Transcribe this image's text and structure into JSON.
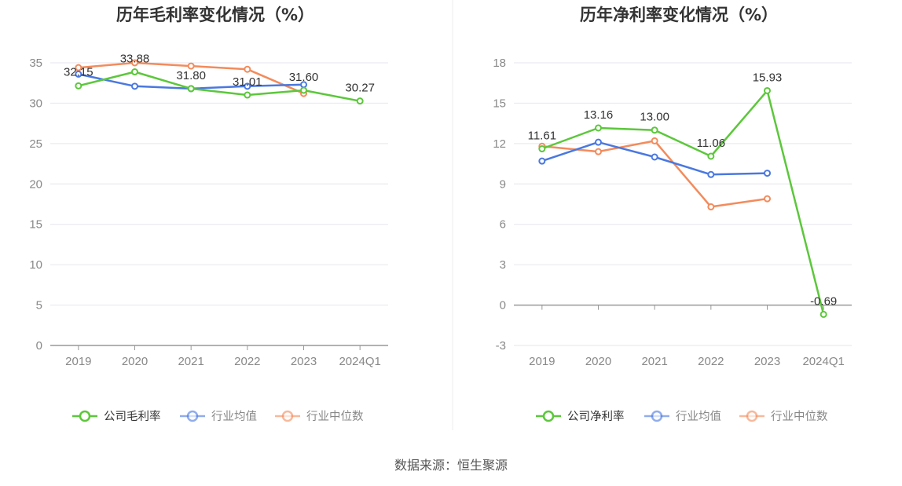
{
  "chart_data": [
    {
      "type": "line",
      "title": "历年毛利率变化情况（%）",
      "categories": [
        "2019",
        "2020",
        "2021",
        "2022",
        "2023",
        "2024Q1"
      ],
      "ylim": [
        0,
        35
      ],
      "yticks": [
        0,
        5,
        10,
        15,
        20,
        25,
        30,
        35
      ],
      "grid": true,
      "legend_position": "bottom",
      "series": [
        {
          "name": "公司毛利率",
          "color": "#5cc73b",
          "values": [
            32.15,
            33.88,
            31.8,
            31.01,
            31.6,
            30.27
          ],
          "show_labels": true
        },
        {
          "name": "行业均值",
          "color": "#4a78e0",
          "values": [
            33.6,
            32.1,
            31.8,
            32.1,
            32.3,
            null
          ],
          "show_labels": false
        },
        {
          "name": "行业中位数",
          "color": "#f38b5c",
          "values": [
            34.4,
            35.0,
            34.6,
            34.2,
            31.2,
            null
          ],
          "show_labels": false
        }
      ]
    },
    {
      "type": "line",
      "title": "历年净利率变化情况（%）",
      "categories": [
        "2019",
        "2020",
        "2021",
        "2022",
        "2023",
        "2024Q1"
      ],
      "ylim": [
        -3,
        18
      ],
      "yticks": [
        -3,
        0,
        3,
        6,
        9,
        12,
        15,
        18
      ],
      "grid": true,
      "legend_position": "bottom",
      "series": [
        {
          "name": "公司净利率",
          "color": "#5cc73b",
          "values": [
            11.61,
            13.16,
            13.0,
            11.06,
            15.93,
            -0.69
          ],
          "show_labels": true
        },
        {
          "name": "行业均值",
          "color": "#4a78e0",
          "values": [
            10.7,
            12.1,
            11.0,
            9.7,
            9.8,
            null
          ],
          "show_labels": false
        },
        {
          "name": "行业中位数",
          "color": "#f38b5c",
          "values": [
            11.8,
            11.4,
            12.2,
            7.3,
            7.9,
            null
          ],
          "show_labels": false
        }
      ]
    }
  ],
  "source": "数据来源：恒生聚源"
}
